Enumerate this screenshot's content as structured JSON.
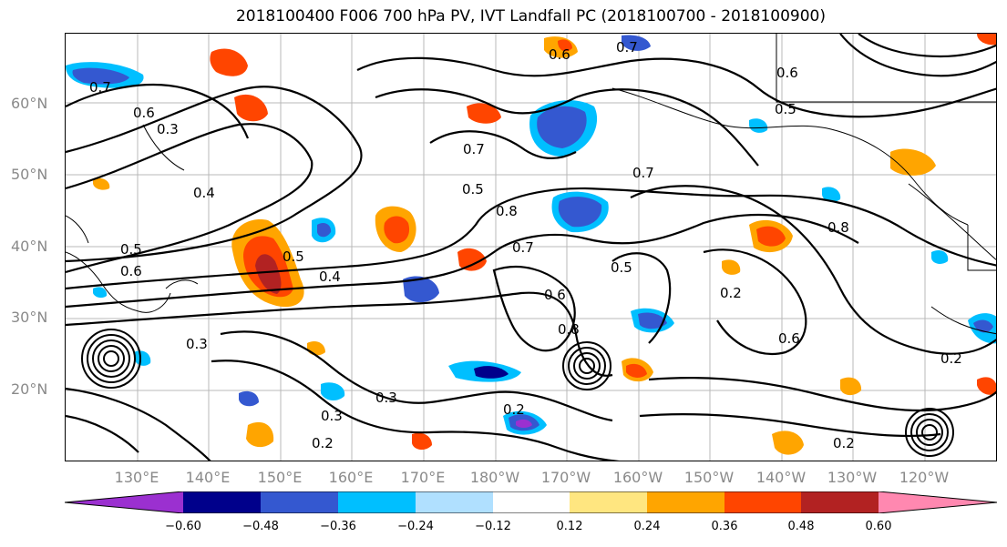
{
  "title": "2018100400 F006 700 hPa PV, IVT Landfall PC (2018100700 - 2018100900)",
  "lat_labels": [
    "60°N",
    "50°N",
    "40°N",
    "30°N",
    "20°N"
  ],
  "lon_labels": [
    "130°E",
    "140°E",
    "150°E",
    "160°E",
    "170°E",
    "180°W",
    "170°W",
    "160°W",
    "150°W",
    "140°W",
    "130°W",
    "120°W"
  ],
  "colorbar": {
    "ticks": [
      "−0.60",
      "−0.48",
      "−0.36",
      "−0.24",
      "−0.12",
      "0.12",
      "0.24",
      "0.36",
      "0.48",
      "0.60"
    ],
    "colors": [
      "#9b30d0",
      "#00008b",
      "#3458d0",
      "#00bfff",
      "#b0e0ff",
      "#ffffff",
      "#ffe680",
      "#ffa500",
      "#ff4500",
      "#b22222",
      "#ff88b0"
    ]
  },
  "contour_labels": [
    "0.7",
    "0.6",
    "0.3",
    "0.4",
    "0.5",
    "0.6",
    "0.5",
    "0.4",
    "0.7",
    "0.5",
    "0.8",
    "0.7",
    "0.6",
    "0.7",
    "0.8",
    "0.6",
    "0.5",
    "0.7",
    "0.5",
    "0.6",
    "0.2",
    "0.3",
    "0.6",
    "0.8",
    "0.2",
    "0.3",
    "0.3",
    "0.2",
    "0.2",
    "0.2"
  ]
}
